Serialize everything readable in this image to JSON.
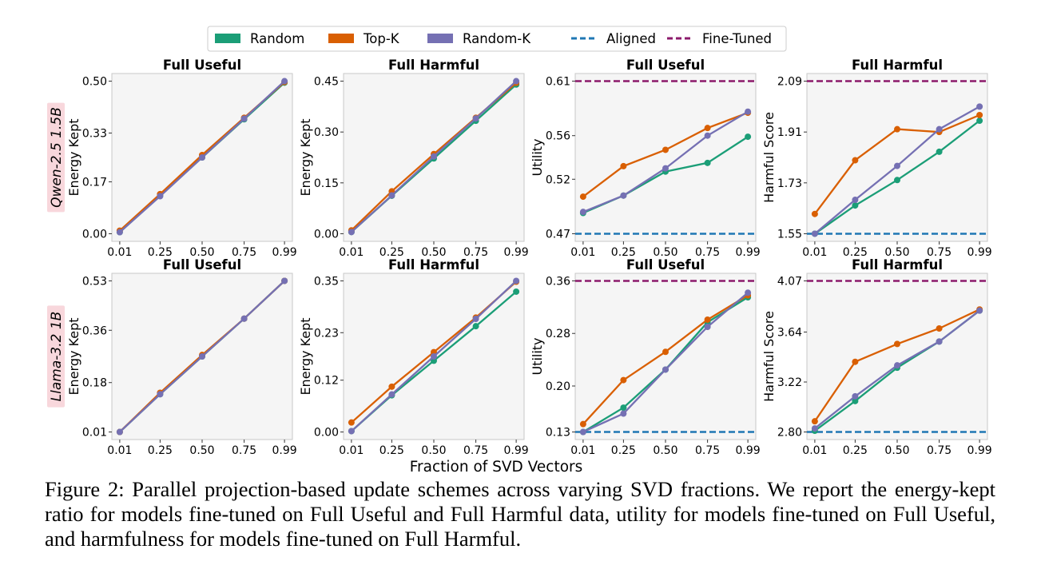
{
  "legend": {
    "items": [
      {
        "label": "Random",
        "style": "patch"
      },
      {
        "label": "Top-K",
        "style": "patch"
      },
      {
        "label": "Random-K",
        "style": "patch"
      },
      {
        "label": "Aligned",
        "style": "dashed"
      },
      {
        "label": "Fine-Tuned",
        "style": "dashed"
      }
    ]
  },
  "row_labels": [
    "Qwen-2.5 1.5B",
    "Llama-3.2 1B"
  ],
  "shared_xlabel": "Fraction of SVD Vectors",
  "caption": "Figure 2: Parallel projection-based update schemes across varying SVD fractions. We report the energy-kept ratio for models fine-tuned on Full Useful and Full Harmful data, utility for models fine-tuned on Full Useful, and harmfulness for models fine-tuned on Full Harmful.",
  "colors": {
    "random": "#1b9e77",
    "topk": "#d95f02",
    "randomk": "#7570b3",
    "aligned": "#1f77b4",
    "finetuned": "#8b1a6b",
    "panel_bg": "#f5f5f5",
    "row_label_bg": "#f8d7dc"
  },
  "chart_data": [
    {
      "type": "line",
      "title": "Full Useful",
      "ylabel": "Energy Kept",
      "x_ticks": [
        "0.01",
        "0.25",
        "0.50",
        "0.75",
        "0.99"
      ],
      "y_ticks": [
        "0.00",
        "0.17",
        "0.33",
        "0.50"
      ],
      "ylim": [
        0.0,
        0.5
      ],
      "x": [
        0.01,
        0.25,
        0.5,
        0.75,
        0.99
      ],
      "series": [
        {
          "name": "Random",
          "values": [
            0.005,
            0.125,
            0.25,
            0.375,
            0.495
          ]
        },
        {
          "name": "Top-K",
          "values": [
            0.01,
            0.13,
            0.258,
            0.38,
            0.497
          ]
        },
        {
          "name": "Random-K",
          "values": [
            0.005,
            0.123,
            0.25,
            0.377,
            0.5
          ]
        }
      ]
    },
    {
      "type": "line",
      "title": "Full Harmful",
      "ylabel": "Energy Kept",
      "x_ticks": [
        "0.01",
        "0.25",
        "0.50",
        "0.75",
        "0.99"
      ],
      "y_ticks": [
        "0.00",
        "0.15",
        "0.30",
        "0.45"
      ],
      "ylim": [
        0.0,
        0.45
      ],
      "x": [
        0.01,
        0.25,
        0.5,
        0.75,
        0.99
      ],
      "series": [
        {
          "name": "Random",
          "values": [
            0.005,
            0.112,
            0.222,
            0.333,
            0.44
          ]
        },
        {
          "name": "Top-K",
          "values": [
            0.01,
            0.125,
            0.235,
            0.342,
            0.445
          ]
        },
        {
          "name": "Random-K",
          "values": [
            0.005,
            0.113,
            0.228,
            0.34,
            0.45
          ]
        }
      ]
    },
    {
      "type": "line",
      "title": "Full Useful",
      "ylabel": "Utility",
      "x_ticks": [
        "0.01",
        "0.25",
        "0.50",
        "0.75",
        "0.99"
      ],
      "y_ticks": [
        "0.47",
        "0.52",
        "0.56",
        "0.61"
      ],
      "ylim": [
        0.47,
        0.61
      ],
      "x": [
        0.01,
        0.25,
        0.5,
        0.75,
        0.99
      ],
      "aligned": 0.47,
      "fine_tuned": 0.61,
      "series": [
        {
          "name": "Random",
          "values": [
            0.489,
            0.505,
            0.527,
            0.535,
            0.559
          ]
        },
        {
          "name": "Top-K",
          "values": [
            0.504,
            0.532,
            0.547,
            0.567,
            0.581
          ]
        },
        {
          "name": "Random-K",
          "values": [
            0.49,
            0.505,
            0.53,
            0.56,
            0.582
          ]
        }
      ]
    },
    {
      "type": "line",
      "title": "Full Harmful",
      "ylabel": "Harmful Score",
      "x_ticks": [
        "0.01",
        "0.25",
        "0.50",
        "0.75",
        "0.99"
      ],
      "y_ticks": [
        "1.55",
        "1.73",
        "1.91",
        "2.09"
      ],
      "ylim": [
        1.55,
        2.09
      ],
      "x": [
        0.01,
        0.25,
        0.5,
        0.75,
        0.99
      ],
      "aligned": 1.55,
      "fine_tuned": 2.09,
      "series": [
        {
          "name": "Random",
          "values": [
            1.55,
            1.65,
            1.74,
            1.84,
            1.95
          ]
        },
        {
          "name": "Top-K",
          "values": [
            1.62,
            1.81,
            1.92,
            1.91,
            1.97
          ]
        },
        {
          "name": "Random-K",
          "values": [
            1.55,
            1.67,
            1.79,
            1.92,
            2.0
          ]
        }
      ]
    },
    {
      "type": "line",
      "title": "Full Useful",
      "ylabel": "Energy Kept",
      "x_ticks": [
        "0.01",
        "0.25",
        "0.50",
        "0.75",
        "0.99"
      ],
      "y_ticks": [
        "0.01",
        "0.18",
        "0.36",
        "0.53"
      ],
      "ylim": [
        0.01,
        0.53
      ],
      "x": [
        0.01,
        0.25,
        0.5,
        0.75,
        0.99
      ],
      "series": [
        {
          "name": "Random",
          "values": [
            0.01,
            0.14,
            0.27,
            0.4,
            0.53
          ]
        },
        {
          "name": "Top-K",
          "values": [
            0.01,
            0.145,
            0.275,
            0.4,
            0.53
          ]
        },
        {
          "name": "Random-K",
          "values": [
            0.01,
            0.14,
            0.27,
            0.4,
            0.53
          ]
        }
      ]
    },
    {
      "type": "line",
      "title": "Full Harmful",
      "ylabel": "Energy Kept",
      "x_ticks": [
        "0.01",
        "0.25",
        "0.50",
        "0.75",
        "0.99"
      ],
      "y_ticks": [
        "0.00",
        "0.12",
        "0.23",
        "0.35"
      ],
      "ylim": [
        0.0,
        0.35
      ],
      "x": [
        0.01,
        0.25,
        0.5,
        0.75,
        0.99
      ],
      "series": [
        {
          "name": "Random",
          "values": [
            0.002,
            0.085,
            0.165,
            0.245,
            0.325
          ]
        },
        {
          "name": "Top-K",
          "values": [
            0.022,
            0.105,
            0.185,
            0.265,
            0.348
          ]
        },
        {
          "name": "Random-K",
          "values": [
            0.002,
            0.087,
            0.175,
            0.262,
            0.35
          ]
        }
      ]
    },
    {
      "type": "line",
      "title": "Full Useful",
      "ylabel": "Utility",
      "x_ticks": [
        "0.01",
        "0.25",
        "0.50",
        "0.75",
        "0.99"
      ],
      "y_ticks": [
        "0.13",
        "0.20",
        "0.28",
        "0.36"
      ],
      "ylim": [
        0.13,
        0.36
      ],
      "x": [
        0.01,
        0.25,
        0.5,
        0.75,
        0.99
      ],
      "aligned": 0.13,
      "fine_tuned": 0.36,
      "series": [
        {
          "name": "Random",
          "values": [
            0.13,
            0.167,
            0.225,
            0.297,
            0.335
          ]
        },
        {
          "name": "Top-K",
          "values": [
            0.142,
            0.209,
            0.252,
            0.301,
            0.338
          ]
        },
        {
          "name": "Random-K",
          "values": [
            0.13,
            0.158,
            0.225,
            0.29,
            0.342
          ]
        }
      ]
    },
    {
      "type": "line",
      "title": "Full Harmful",
      "ylabel": "Harmful Score",
      "x_ticks": [
        "0.01",
        "0.25",
        "0.50",
        "0.75",
        "0.99"
      ],
      "y_ticks": [
        "2.80",
        "3.22",
        "3.64",
        "4.07"
      ],
      "ylim": [
        2.8,
        4.07
      ],
      "x": [
        0.01,
        0.25,
        0.5,
        0.75,
        0.99
      ],
      "aligned": 2.8,
      "fine_tuned": 4.07,
      "series": [
        {
          "name": "Random",
          "values": [
            2.81,
            3.06,
            3.34,
            3.56,
            3.82
          ]
        },
        {
          "name": "Top-K",
          "values": [
            2.89,
            3.39,
            3.54,
            3.67,
            3.83
          ]
        },
        {
          "name": "Random-K",
          "values": [
            2.83,
            3.1,
            3.36,
            3.56,
            3.82
          ]
        }
      ]
    }
  ]
}
